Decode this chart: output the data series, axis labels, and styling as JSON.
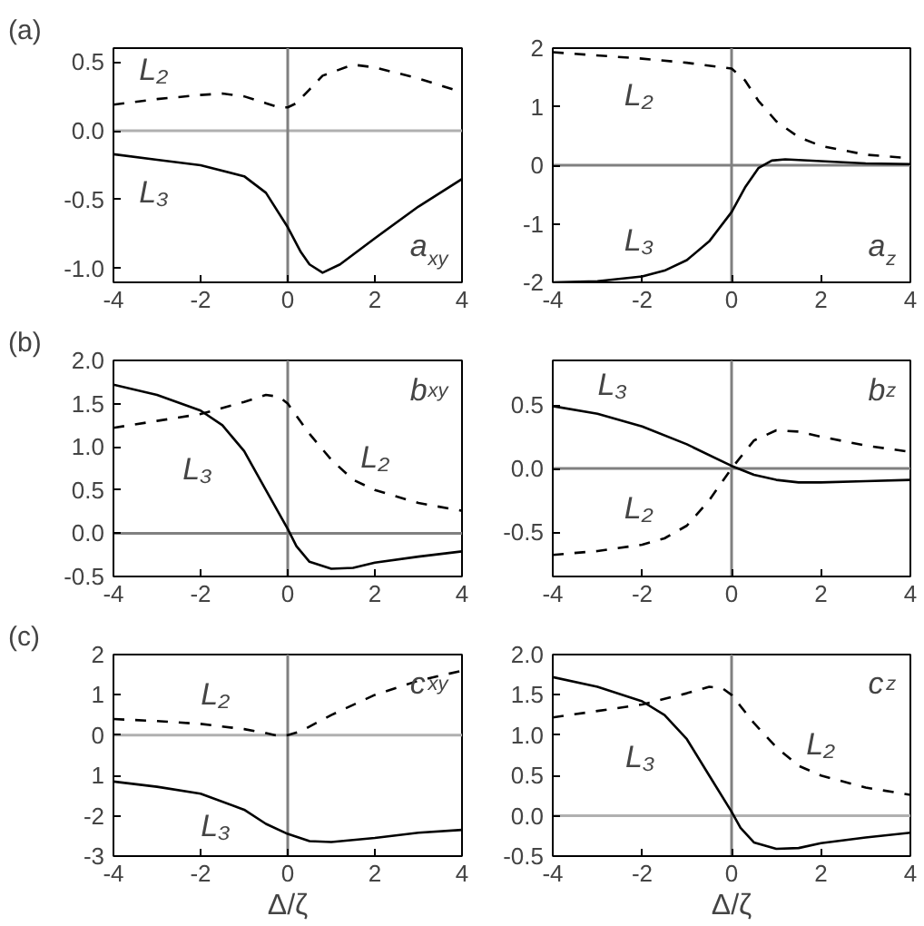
{
  "chart_data": [
    {
      "type": "line",
      "title": "(a)",
      "subtitle": "a$_{xy}$",
      "xlim": [
        -4,
        4
      ],
      "xticks": [
        -4,
        -2,
        0,
        2,
        4
      ],
      "ylim": [
        -1.1,
        0.6
      ],
      "yticks": [
        {
          "value": -1.0,
          "label": "-1.0"
        },
        {
          "value": -0.5,
          "label": "-0.5"
        },
        {
          "value": 0,
          "label": "0.0"
        },
        {
          "value": 0.5,
          "label": "0.5"
        }
      ],
      "ref_lines": [
        {
          "axis": "y",
          "value": 0,
          "color": "#b0b0b0"
        },
        {
          "axis": "x",
          "value": 0,
          "color": "#808080"
        }
      ],
      "series": [
        {
          "name": "L₂",
          "color": "#000000",
          "line_style": "dashed",
          "x": [
            -4,
            -3,
            -2,
            -1.5,
            -1,
            -0.5,
            -0.2,
            0,
            0.2,
            0.5,
            0.8,
            1.5,
            2,
            3,
            4
          ],
          "values": [
            0.19,
            0.23,
            0.26,
            0.27,
            0.25,
            0.2,
            0.17,
            0.17,
            0.2,
            0.3,
            0.4,
            0.48,
            0.46,
            0.38,
            0.28
          ]
        },
        {
          "name": "L₃",
          "color": "#000000",
          "line_style": "solid",
          "x": [
            -4,
            -3,
            -2,
            -1,
            -0.5,
            0,
            0.3,
            0.5,
            0.8,
            1.2,
            2,
            3,
            4
          ],
          "values": [
            -0.17,
            -0.21,
            -0.25,
            -0.33,
            -0.45,
            -0.7,
            -0.88,
            -0.97,
            -1.03,
            -0.97,
            -0.78,
            -0.55,
            -0.35
          ]
        }
      ]
    },
    {
      "type": "line",
      "subtitle": "a$_{z}$",
      "xlim": [
        -4,
        4
      ],
      "xticks": [
        -4,
        -2,
        0,
        2,
        4
      ],
      "ylim": [
        -2,
        2
      ],
      "yticks": [
        -2,
        -1,
        0,
        1,
        2
      ],
      "ref_lines": [
        {
          "axis": "y",
          "value": 0,
          "color": "#808080"
        },
        {
          "axis": "x",
          "value": 0,
          "color": "#808080"
        }
      ],
      "series": [
        {
          "name": "L₂",
          "color": "#000000",
          "line_style": "dashed",
          "x": [
            -4,
            -2,
            -1,
            0,
            0.3,
            0.6,
            1,
            1.5,
            2,
            3,
            4
          ],
          "values": [
            1.93,
            1.82,
            1.75,
            1.65,
            1.45,
            1.1,
            0.75,
            0.48,
            0.33,
            0.18,
            0.12
          ]
        },
        {
          "name": "L₃",
          "color": "#000000",
          "line_style": "solid",
          "x": [
            -4,
            -3,
            -2,
            -1.5,
            -1,
            -0.5,
            0,
            0.3,
            0.6,
            0.9,
            1.2,
            2,
            3,
            4
          ],
          "values": [
            -2.0,
            -1.98,
            -1.9,
            -1.8,
            -1.62,
            -1.3,
            -0.8,
            -0.38,
            -0.05,
            0.08,
            0.1,
            0.07,
            0.03,
            0.02
          ]
        }
      ]
    },
    {
      "type": "line",
      "title": "(b)",
      "subtitle": "b$_{xy}$",
      "xlim": [
        -4,
        4
      ],
      "xticks": [
        -4,
        -2,
        0,
        2,
        4
      ],
      "ylim": [
        -0.5,
        2.0
      ],
      "yticks": [
        {
          "value": -0.5,
          "label": "-0.5"
        },
        {
          "value": 0,
          "label": "0.0"
        },
        {
          "value": 0.5,
          "label": "0.5"
        },
        {
          "value": 1.0,
          "label": "1.0"
        },
        {
          "value": 1.5,
          "label": "1.5"
        },
        {
          "value": 2.0,
          "label": "2.0"
        }
      ],
      "ref_lines": [
        {
          "axis": "y",
          "value": 0,
          "color": "#808080"
        },
        {
          "axis": "x",
          "value": 0,
          "color": "#808080"
        }
      ],
      "series": [
        {
          "name": "L₂",
          "color": "#000000",
          "line_style": "dashed",
          "x": [
            -4,
            -3,
            -2,
            -1,
            -0.5,
            -0.2,
            0,
            0.5,
            1,
            1.5,
            2,
            3,
            4
          ],
          "values": [
            1.22,
            1.3,
            1.38,
            1.52,
            1.6,
            1.58,
            1.5,
            1.15,
            0.85,
            0.62,
            0.5,
            0.35,
            0.26
          ]
        },
        {
          "name": "L₃",
          "color": "#000000",
          "line_style": "solid",
          "x": [
            -4,
            -3,
            -2,
            -1.5,
            -1,
            -0.5,
            0,
            0.2,
            0.5,
            1,
            1.5,
            2,
            3,
            4
          ],
          "values": [
            1.72,
            1.6,
            1.42,
            1.25,
            0.95,
            0.5,
            0.05,
            -0.15,
            -0.33,
            -0.41,
            -0.4,
            -0.34,
            -0.27,
            -0.21
          ]
        }
      ]
    },
    {
      "type": "line",
      "subtitle": "b$_{z}$",
      "xlim": [
        -4,
        4
      ],
      "xticks": [
        -4,
        -2,
        0,
        2,
        4
      ],
      "ylim": [
        -0.85,
        0.85
      ],
      "yticks": [
        {
          "value": -0.5,
          "label": "-0.5"
        },
        {
          "value": 0,
          "label": "0.0"
        },
        {
          "value": 0.5,
          "label": "0.5"
        }
      ],
      "ref_lines": [
        {
          "axis": "y",
          "value": 0,
          "color": "#808080"
        },
        {
          "axis": "x",
          "value": 0,
          "color": "#808080"
        }
      ],
      "series": [
        {
          "name": "L₂",
          "color": "#000000",
          "line_style": "dashed",
          "x": [
            -4,
            -3,
            -2,
            -1.5,
            -1,
            -0.5,
            0,
            0.5,
            1,
            1.5,
            2,
            3,
            4
          ],
          "values": [
            -0.68,
            -0.65,
            -0.6,
            -0.55,
            -0.45,
            -0.25,
            0.0,
            0.22,
            0.3,
            0.29,
            0.25,
            0.18,
            0.13
          ]
        },
        {
          "name": "L₃",
          "color": "#000000",
          "line_style": "solid",
          "x": [
            -4,
            -3,
            -2,
            -1,
            0,
            0.5,
            1,
            1.5,
            2,
            3,
            4
          ],
          "values": [
            0.49,
            0.43,
            0.33,
            0.19,
            0.02,
            -0.05,
            -0.09,
            -0.11,
            -0.11,
            -0.1,
            -0.09
          ]
        }
      ]
    },
    {
      "type": "line",
      "title": "(c)",
      "subtitle": "c$_{xy}$",
      "xlabel": "Δ/ζ",
      "xlim": [
        -4,
        4
      ],
      "xticks": [
        -4,
        -2,
        0,
        2,
        4
      ],
      "ylim": [
        -3,
        2
      ],
      "yticks": [
        -3,
        -2,
        {
          "value": -1,
          "label": "1"
        },
        0,
        1,
        2
      ],
      "ref_lines": [
        {
          "axis": "y",
          "value": 0,
          "color": "#b0b0b0"
        },
        {
          "axis": "x",
          "value": 0,
          "color": "#808080"
        }
      ],
      "series": [
        {
          "name": "L₂",
          "color": "#000000",
          "line_style": "dashed",
          "x": [
            -4,
            -3,
            -2,
            -1,
            -0.5,
            -0.2,
            0,
            0.3,
            1,
            2,
            3,
            4
          ],
          "values": [
            0.4,
            0.35,
            0.28,
            0.15,
            0.05,
            -0.02,
            0.0,
            0.1,
            0.5,
            1.0,
            1.35,
            1.6
          ]
        },
        {
          "name": "L₃",
          "color": "#000000",
          "line_style": "solid",
          "x": [
            -4,
            -3,
            -2,
            -1,
            -0.5,
            0,
            0.5,
            1,
            2,
            3,
            4
          ],
          "values": [
            -1.15,
            -1.28,
            -1.45,
            -1.85,
            -2.2,
            -2.45,
            -2.63,
            -2.65,
            -2.55,
            -2.42,
            -2.35
          ]
        }
      ]
    },
    {
      "type": "line",
      "subtitle": "c$_{z}$",
      "xlabel": "Δ/ζ",
      "xlim": [
        -4,
        4
      ],
      "xticks": [
        -4,
        -2,
        0,
        2,
        4
      ],
      "ylim": [
        -0.5,
        2.0
      ],
      "yticks": [
        {
          "value": -0.5,
          "label": "-0.5"
        },
        {
          "value": 0,
          "label": "0.0"
        },
        {
          "value": 0.5,
          "label": "0.5"
        },
        {
          "value": 1.0,
          "label": "1.0"
        },
        {
          "value": 1.5,
          "label": "1.5"
        },
        {
          "value": 2.0,
          "label": "2.0"
        }
      ],
      "ref_lines": [
        {
          "axis": "y",
          "value": 0,
          "color": "#b0b0b0"
        },
        {
          "axis": "x",
          "value": 0,
          "color": "#808080"
        }
      ],
      "series": [
        {
          "name": "L₂",
          "color": "#000000",
          "line_style": "dashed",
          "x": [
            -4,
            -3,
            -2,
            -1,
            -0.5,
            -0.2,
            0,
            0.5,
            1,
            1.5,
            2,
            3,
            4
          ],
          "values": [
            1.22,
            1.3,
            1.38,
            1.52,
            1.6,
            1.58,
            1.5,
            1.15,
            0.85,
            0.62,
            0.5,
            0.35,
            0.26
          ]
        },
        {
          "name": "L₃",
          "color": "#000000",
          "line_style": "solid",
          "x": [
            -4,
            -3,
            -2,
            -1.5,
            -1,
            -0.5,
            0,
            0.2,
            0.5,
            1,
            1.5,
            2,
            3,
            4
          ],
          "values": [
            1.72,
            1.6,
            1.42,
            1.25,
            0.95,
            0.5,
            0.05,
            -0.15,
            -0.33,
            -0.41,
            -0.4,
            -0.34,
            -0.27,
            -0.21
          ]
        }
      ]
    }
  ]
}
